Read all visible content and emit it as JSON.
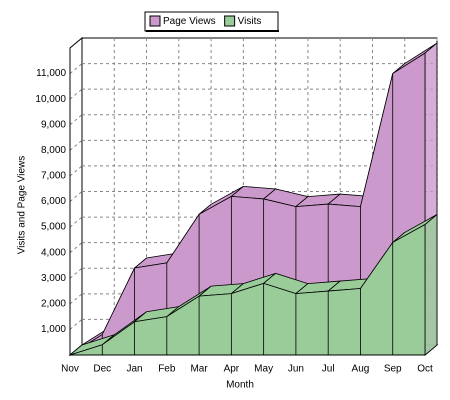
{
  "chart_data": {
    "type": "area3d",
    "x_label": "Month",
    "y_label": "Visits and Page Views",
    "categories": [
      "Nov",
      "Dec",
      "Jan",
      "Feb",
      "Mar",
      "Apr",
      "May",
      "Jun",
      "Jul",
      "Aug",
      "Sep",
      "Oct"
    ],
    "series": [
      {
        "name": "Page Views",
        "color": "#cc99cc",
        "values": [
          0,
          800,
          3400,
          3600,
          5500,
          6200,
          6100,
          5800,
          5900,
          5800,
          11000,
          11800
        ]
      },
      {
        "name": "Visits",
        "color": "#99cc99",
        "values": [
          0,
          400,
          1300,
          1500,
          2300,
          2400,
          2800,
          2400,
          2500,
          2600,
          4400,
          5100
        ]
      }
    ],
    "ylim": [
      0,
      12000
    ],
    "yticks": [
      {
        "value": 1000,
        "label": "1,000"
      },
      {
        "value": 2000,
        "label": "2,000"
      },
      {
        "value": 3000,
        "label": "3,000"
      },
      {
        "value": 4000,
        "label": "4,000"
      },
      {
        "value": 5000,
        "label": "5,000"
      },
      {
        "value": 6000,
        "label": "6,000"
      },
      {
        "value": 7000,
        "label": "7,000"
      },
      {
        "value": 8000,
        "label": "8,000"
      },
      {
        "value": 9000,
        "label": "9,000"
      },
      {
        "value": 10000,
        "label": "10,000"
      },
      {
        "value": 11000,
        "label": "11,000"
      }
    ],
    "grid": true
  }
}
